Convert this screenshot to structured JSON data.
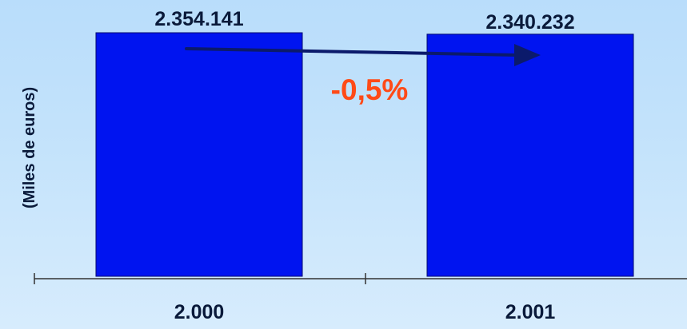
{
  "colors": {
    "bar": "#0014f0",
    "bar_stroke": "#00096e",
    "arrow": "#0b1a6b",
    "change": "#ff4a17",
    "axis": "#333333"
  },
  "chart_data": {
    "type": "bar",
    "categories": [
      "2.000",
      "2.001"
    ],
    "values": [
      2354141,
      2340232
    ],
    "value_labels": [
      "2.354.141",
      "2.340.232"
    ],
    "ylabel": "(Miles de euros)",
    "ylim": [
      0,
      2354141
    ],
    "grid": false,
    "legend": "none",
    "annotation": {
      "text": "-0,5%",
      "type": "arrow",
      "from_category": "2.000",
      "to_category": "2.001"
    }
  }
}
